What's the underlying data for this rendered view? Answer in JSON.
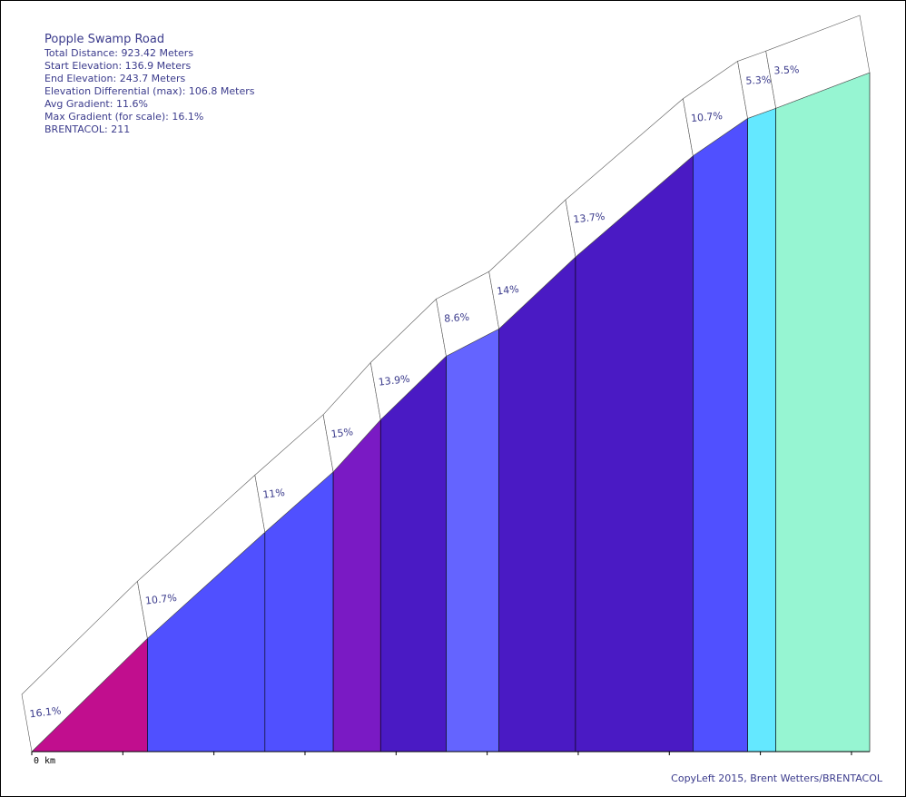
{
  "chart_data": {
    "type": "area",
    "title": "Popple Swamp Road",
    "stats": [
      "Total Distance: 923.42 Meters",
      "Start Elevation: 136.9 Meters",
      "End Elevation: 243.7 Meters",
      "Elevation Differential (max): 106.8 Meters",
      "Avg Gradient: 11.6%",
      "Max Gradient (for scale): 16.1%",
      "BRENTACOL: 211"
    ],
    "x_unit": "m",
    "x_tick_labels": [
      "0 km"
    ],
    "x_ticks": [
      0,
      100,
      200,
      300,
      400,
      500,
      600,
      700,
      800,
      900
    ],
    "segments": [
      {
        "x0": 0,
        "x1": 127,
        "y0": 136.9,
        "y1": 154.7,
        "gradient": "16.1%",
        "color": "#c10e8e"
      },
      {
        "x0": 127,
        "x1": 256,
        "y0": 154.7,
        "y1": 171.4,
        "gradient": "10.7%",
        "color": "#5050ff"
      },
      {
        "x0": 256,
        "x1": 331,
        "y0": 171.4,
        "y1": 180.9,
        "gradient": "11%",
        "color": "#5050ff"
      },
      {
        "x0": 331,
        "x1": 383,
        "y0": 180.9,
        "y1": 189.1,
        "gradient": "15%",
        "color": "#7a1ac4"
      },
      {
        "x0": 383,
        "x1": 455,
        "y0": 189.1,
        "y1": 199.1,
        "gradient": "13.9%",
        "color": "#4a1ac4"
      },
      {
        "x0": 455,
        "x1": 513,
        "y0": 199.1,
        "y1": 203.4,
        "gradient": "8.6%",
        "color": "#6464ff"
      },
      {
        "x0": 513,
        "x1": 597,
        "y0": 203.4,
        "y1": 214.7,
        "gradient": "14%",
        "color": "#4a1ac4"
      },
      {
        "x0": 597,
        "x1": 726,
        "y0": 214.7,
        "y1": 230.6,
        "gradient": "13.7%",
        "color": "#4a1ac4"
      },
      {
        "x0": 726,
        "x1": 786,
        "y0": 230.6,
        "y1": 236.5,
        "gradient": "10.7%",
        "color": "#5050ff"
      },
      {
        "x0": 786,
        "x1": 817,
        "y0": 236.5,
        "y1": 238.1,
        "gradient": "5.3%",
        "color": "#64e8ff"
      },
      {
        "x0": 817,
        "x1": 920,
        "y0": 238.1,
        "y1": 243.7,
        "gradient": "3.5%",
        "color": "#96f5d2"
      }
    ]
  },
  "footer": {
    "credit": "CopyLeft 2015, Brent Wetters/BRENTACOL"
  }
}
